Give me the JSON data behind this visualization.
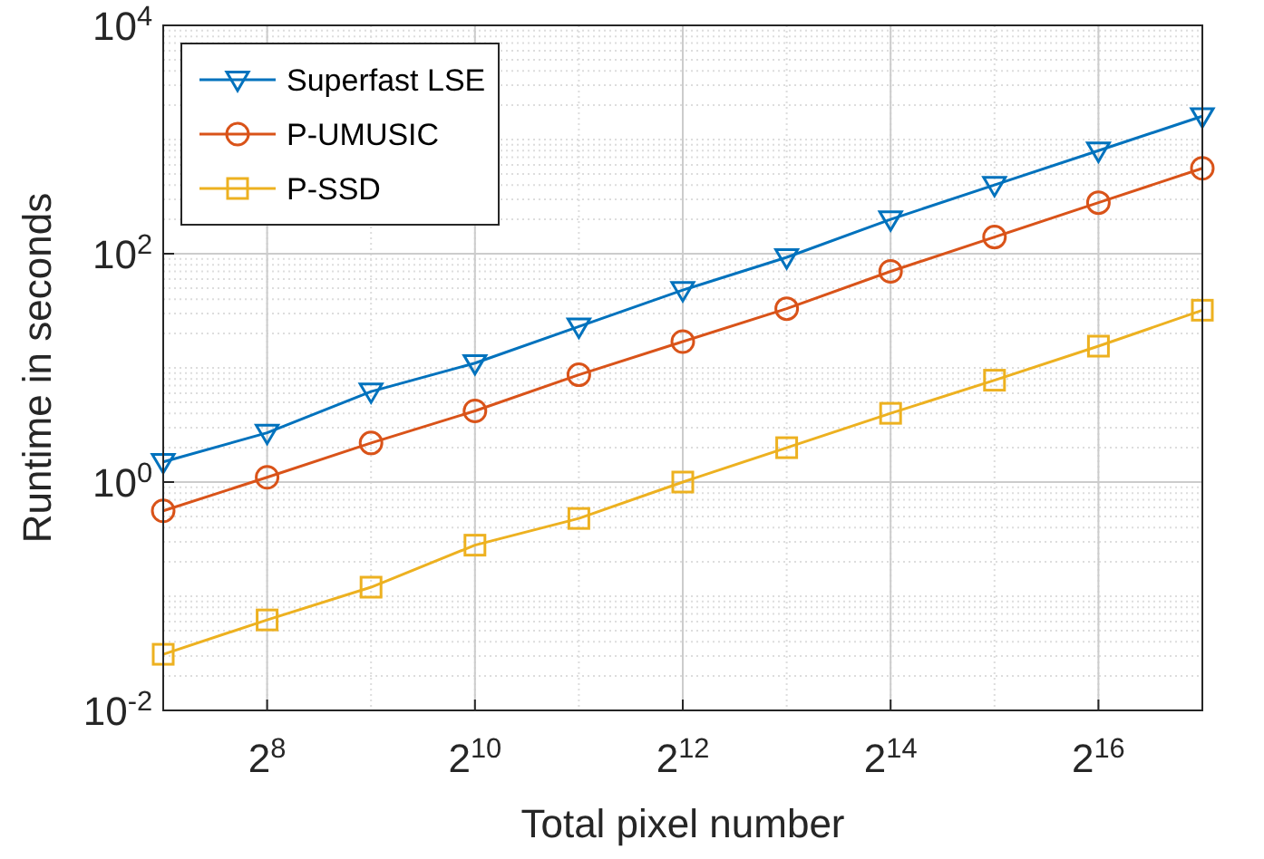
{
  "chart_data": {
    "type": "line",
    "xlabel": "Total pixel number",
    "ylabel": "Runtime in seconds",
    "log": "xy",
    "grid": true,
    "legend": "top left",
    "line_style": "solid",
    "x": [
      128,
      256,
      512,
      1024,
      2048,
      4096,
      8192,
      16384,
      32768,
      65536,
      131072
    ],
    "xlim": [
      128,
      131072
    ],
    "xticks": [
      {
        "value": 256,
        "label": "2$^{8}$"
      },
      {
        "value": 1024,
        "label": "2$^{10}$"
      },
      {
        "value": 4096,
        "label": "2$^{12}$"
      },
      {
        "value": 16384,
        "label": "2$^{14}$"
      },
      {
        "value": 65536,
        "label": "2$^{16}$"
      }
    ],
    "ylim": [
      0.01,
      10000
    ],
    "yticks": [
      {
        "value": 0.01,
        "label": "10$^{-2}$"
      },
      {
        "value": 1,
        "label": "10$^{0}$"
      },
      {
        "value": 100,
        "label": "10$^{2}$"
      },
      {
        "value": 10000,
        "label": "10$^{4}$"
      }
    ],
    "series": [
      {
        "name": "Superfast LSE",
        "color": "#0072bd",
        "marker": "triangle",
        "values": [
          1.5,
          2.7,
          6.2,
          11,
          23,
          48,
          93,
          200,
          400,
          800,
          1600
        ]
      },
      {
        "name": "P-UMUSIC",
        "color": "#d95319",
        "marker": "circle",
        "values": [
          0.56,
          1.1,
          2.2,
          4.2,
          8.7,
          17,
          33,
          70,
          140,
          280,
          560
        ]
      },
      {
        "name": "P-SSD",
        "color": "#edb120",
        "marker": "square",
        "values": [
          0.031,
          0.062,
          0.12,
          0.28,
          0.48,
          1.0,
          2.0,
          4.0,
          7.8,
          15.5,
          32
        ]
      }
    ]
  }
}
